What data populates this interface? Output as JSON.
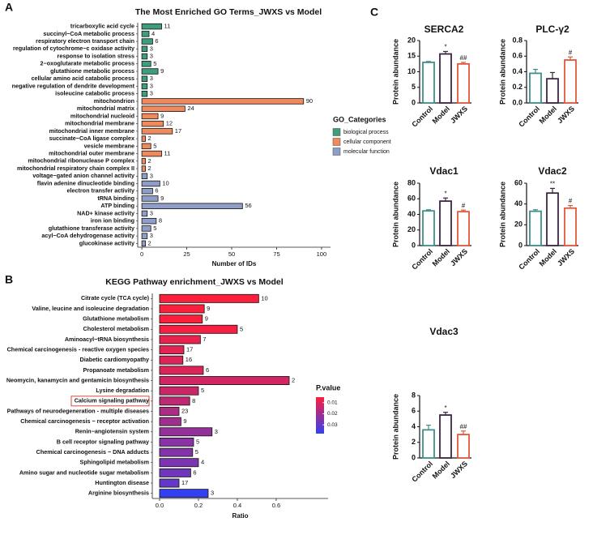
{
  "panel_labels": [
    "A",
    "B",
    "C"
  ],
  "chart_data": [
    {
      "type": "bar",
      "orientation": "horizontal",
      "title": "The Most Enriched GO Terms_JWXS vs Model",
      "xlabel": "Number of IDs",
      "legend_title": "GO_Categories",
      "categories": [
        "tricarboxylic acid cycle",
        "succinyl−CoA metabolic process",
        "respiratory electron transport chain",
        "regulation of cytochrome−c oxidase activity",
        "response to isolation stress",
        "2−oxoglutarate metabolic process",
        "glutathione metabolic process",
        "cellular amino acid catabolic process",
        "negative regulation of dendrite development",
        "isoleucine catabolic process",
        "mitochondrion",
        "mitochondrial matrix",
        "mitochondrial nucleoid",
        "mitochondrial membrane",
        "mitochondrial inner membrane",
        "succinate−CoA ligase complex",
        "vesicle membrane",
        "mitochondrial outer membrane",
        "mitochondrial ribonuclease P complex",
        "mitochondrial respiratory chain complex II",
        "voltage−gated anion channel activity",
        "flavin adenine dinucleotide binding",
        "electron transfer activity",
        "tRNA binding",
        "ATP binding",
        "NAD+ kinase activity",
        "iron ion binding",
        "glutathione transferase activity",
        "acyl−CoA dehydrogenase activity",
        "glucokinase activity"
      ],
      "series": [
        {
          "name": "biological process",
          "color": "#3e9e7c",
          "values": [
            11,
            4,
            6,
            3,
            3,
            5,
            9,
            3,
            3,
            3,
            null,
            null,
            null,
            null,
            null,
            null,
            null,
            null,
            null,
            null,
            null,
            null,
            null,
            null,
            null,
            null,
            null,
            null,
            null,
            null
          ]
        },
        {
          "name": "cellular component",
          "color": "#f08a5c",
          "values": [
            null,
            null,
            null,
            null,
            null,
            null,
            null,
            null,
            null,
            null,
            90,
            24,
            9,
            12,
            17,
            2,
            5,
            11,
            2,
            2,
            null,
            null,
            null,
            null,
            null,
            null,
            null,
            null,
            null,
            null
          ]
        },
        {
          "name": "molecular function",
          "color": "#8e9ec8",
          "values": [
            null,
            null,
            null,
            null,
            null,
            null,
            null,
            null,
            null,
            null,
            null,
            null,
            null,
            null,
            null,
            null,
            null,
            null,
            null,
            null,
            3,
            10,
            6,
            9,
            56,
            3,
            8,
            5,
            3,
            2
          ]
        }
      ],
      "xlim": [
        -2.3,
        105
      ],
      "xticks": [
        0,
        25,
        50,
        75,
        100
      ]
    },
    {
      "type": "bar",
      "orientation": "horizontal",
      "title": "KEGG Pathway enrichment_JWXS vs Model",
      "xlabel": "Ratio",
      "legend_title": "P.value",
      "categories": [
        "Citrate cycle (TCA cycle)",
        "Valine, leucine and isoleucine degradation",
        "Glutathione metabolism",
        "Cholesterol metabolism",
        "Aminoacyl−tRNA biosynthesis",
        "Chemical carcinogenesis - reactive oxygen species",
        "Diabetic cardiomyopathy",
        "Propanoate metabolism",
        "Neomycin, kanamycin and gentamicin biosynthesis",
        "Lysine degradation",
        "Calcium signaling pathway",
        "Pathways of neurodegeneration - multiple diseases",
        "Chemical carcinogenesis − receptor activation",
        "Renin−angiotensin system",
        "B cell receptor signaling pathway",
        "Chemical carcinogenesis − DNA adducts",
        "Sphingolipid metabolism",
        "Amino sugar and nucleotide sugar metabolism",
        "Huntington disease",
        "Arginine biosynthesis"
      ],
      "values": [
        0.51,
        0.23,
        0.22,
        0.4,
        0.21,
        0.125,
        0.12,
        0.225,
        0.667,
        0.2,
        0.155,
        0.1,
        0.11,
        0.27,
        0.175,
        0.17,
        0.2,
        0.16,
        0.1,
        0.25
      ],
      "counts": [
        10,
        9,
        9,
        5,
        7,
        17,
        16,
        6,
        2,
        5,
        8,
        23,
        9,
        3,
        5,
        5,
        4,
        6,
        17,
        3
      ],
      "p_values": [
        0.003,
        0.005,
        0.005,
        0.006,
        0.008,
        0.009,
        0.01,
        0.01,
        0.012,
        0.013,
        0.015,
        0.018,
        0.02,
        0.022,
        0.024,
        0.025,
        0.026,
        0.028,
        0.03,
        0.04
      ],
      "low_color": "#fb1f3c",
      "high_color": "#3340f2",
      "colorbar_lim": [
        0.005,
        0.038
      ],
      "colorbar_ticks": [
        0.01,
        0.02,
        0.03
      ],
      "highlight": "Calcium signaling pathway",
      "xlim": [
        -0.0375,
        0.867
      ],
      "xticks": [
        {
          "value": 0,
          "label": "0.0"
        },
        0.2,
        0.4,
        0.6
      ]
    },
    {
      "type": "bar",
      "orientation": "vertical",
      "title": "SERCA2",
      "ylabel": "Protein abundance",
      "categories": [
        "Control",
        "Model",
        "JWXS"
      ],
      "colors": [
        "#3f8f8b",
        "#3b2541",
        "#e0583a"
      ],
      "values": [
        13,
        15.7,
        12.5
      ],
      "errors": [
        0.3,
        0.8,
        0.5
      ],
      "annotations": [
        null,
        "*",
        "##"
      ],
      "ylim": [
        0,
        20
      ],
      "yticks": [
        0,
        5,
        10,
        15,
        20
      ]
    },
    {
      "type": "bar",
      "orientation": "vertical",
      "title": "PLC-γ2",
      "ylabel": "Protein abundance",
      "categories": [
        "Control",
        "Model",
        "JWXS"
      ],
      "colors": [
        "#3f8f8b",
        "#3b2541",
        "#e0583a"
      ],
      "values": [
        0.38,
        0.31,
        0.55
      ],
      "errors": [
        0.05,
        0.08,
        0.04
      ],
      "annotations": [
        null,
        null,
        "#"
      ],
      "ylim": [
        0,
        0.8
      ],
      "yticks": [
        {
          "value": 0,
          "label": "0.0"
        },
        0.2,
        0.4,
        0.6,
        0.8
      ]
    },
    {
      "type": "bar",
      "orientation": "vertical",
      "title": "Vdac1",
      "ylabel": "Protein abundance",
      "categories": [
        "Control",
        "Model",
        "JWXS"
      ],
      "colors": [
        "#3f8f8b",
        "#3b2541",
        "#e0583a"
      ],
      "values": [
        44.5,
        57,
        43.5
      ],
      "errors": [
        1.5,
        4,
        2
      ],
      "annotations": [
        null,
        "*",
        "#"
      ],
      "ylim": [
        0,
        80
      ],
      "yticks": [
        0,
        20,
        40,
        60,
        80
      ]
    },
    {
      "type": "bar",
      "orientation": "vertical",
      "title": "Vdac2",
      "ylabel": "Protein abundance",
      "categories": [
        "Control",
        "Model",
        "JWXS"
      ],
      "colors": [
        "#3f8f8b",
        "#3b2541",
        "#e0583a"
      ],
      "values": [
        33,
        50.5,
        36
      ],
      "errors": [
        1.5,
        4.5,
        2.5
      ],
      "annotations": [
        null,
        "**",
        "#"
      ],
      "ylim": [
        0,
        60
      ],
      "yticks": [
        0,
        20,
        40,
        60
      ]
    },
    {
      "type": "bar",
      "orientation": "vertical",
      "title": "Vdac3",
      "ylabel": "Protein abundance",
      "categories": [
        "Control",
        "Model",
        "JWXS"
      ],
      "colors": [
        "#3f8f8b",
        "#3b2541",
        "#e0583a"
      ],
      "values": [
        3.6,
        5.5,
        3.0
      ],
      "errors": [
        0.6,
        0.35,
        0.45
      ],
      "annotations": [
        null,
        "*",
        "##"
      ],
      "ylim": [
        0,
        8
      ],
      "yticks": [
        0,
        2,
        4,
        6,
        8
      ]
    }
  ]
}
